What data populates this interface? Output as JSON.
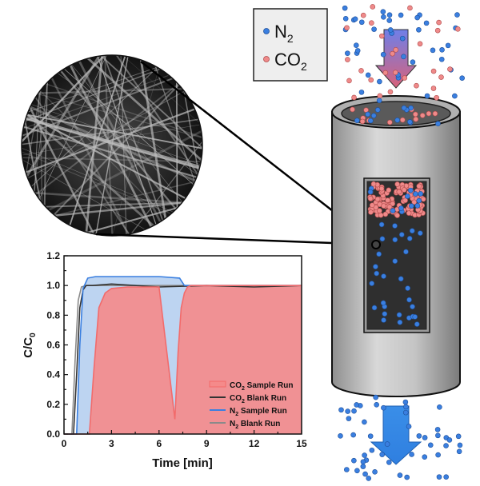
{
  "legend_box": {
    "items": [
      {
        "base": "N",
        "sub": "2",
        "color": "#3a7fe0",
        "marker": "blue-particle-icon"
      },
      {
        "base": "CO",
        "sub": "2",
        "color": "#ef8a8a",
        "marker": "red-particle-icon"
      }
    ]
  },
  "chart_data": {
    "type": "area",
    "xlabel": "Time [min]",
    "ylabel_base": "C/C",
    "ylabel_sub": "0",
    "xlim": [
      0,
      15
    ],
    "ylim": [
      0,
      1.2
    ],
    "xticks": [
      "0",
      "3",
      "6",
      "9",
      "12",
      "15"
    ],
    "yticks": [
      "0.0",
      "0.2",
      "0.4",
      "0.6",
      "0.8",
      "1.0",
      "1.2"
    ],
    "grid": false,
    "legend_position": "bottom-right",
    "series": [
      {
        "name_base": "CO",
        "name_sub": "2",
        "name_rest": " Sample Run",
        "color": "#f26b6b",
        "fill": "#f58a8a",
        "x": [
          0,
          1.6,
          1.9,
          2.2,
          2.6,
          3.0,
          4.0,
          5.0,
          6.0,
          7.0,
          7.2,
          7.4,
          7.6,
          7.8,
          8.0,
          15
        ],
        "y": [
          0,
          0,
          0.45,
          0.85,
          0.95,
          0.98,
          0.99,
          0.99,
          0.99,
          0.1,
          0.55,
          0.85,
          0.95,
          0.99,
          1.0,
          1.0
        ]
      },
      {
        "name_base": "CO",
        "name_sub": "2",
        "name_rest": " Blank Run",
        "color": "#333333",
        "x": [
          0,
          0.6,
          0.8,
          1.0,
          1.2,
          1.4,
          1.8,
          3.0,
          6.0,
          9.0,
          12.0,
          15
        ],
        "y": [
          0,
          0,
          0.4,
          0.85,
          0.97,
          1.0,
          1.0,
          1.01,
          0.99,
          1.0,
          0.99,
          1.0
        ]
      },
      {
        "name_base": "N",
        "name_sub": "2",
        "name_rest": " Sample Run",
        "color": "#3a7fe0",
        "fill": "#b6cff0",
        "x": [
          0,
          0.8,
          1.0,
          1.2,
          1.5,
          2.0,
          4.0,
          6.0,
          7.3,
          7.6,
          9.0,
          15
        ],
        "y": [
          0,
          0,
          0.6,
          0.98,
          1.05,
          1.06,
          1.06,
          1.06,
          1.05,
          1.0,
          1.0,
          1.0
        ]
      },
      {
        "name_base": "N",
        "name_sub": "2",
        "name_rest": " Blank Run",
        "color": "#8a8a8a",
        "x": [
          0,
          0.5,
          0.7,
          0.9,
          1.1,
          1.4,
          3.0,
          6.0,
          9.0,
          12.0,
          15
        ],
        "y": [
          0,
          0,
          0.5,
          0.9,
          0.99,
          1.0,
          1.0,
          1.0,
          1.0,
          1.0,
          1.0
        ]
      }
    ]
  }
}
